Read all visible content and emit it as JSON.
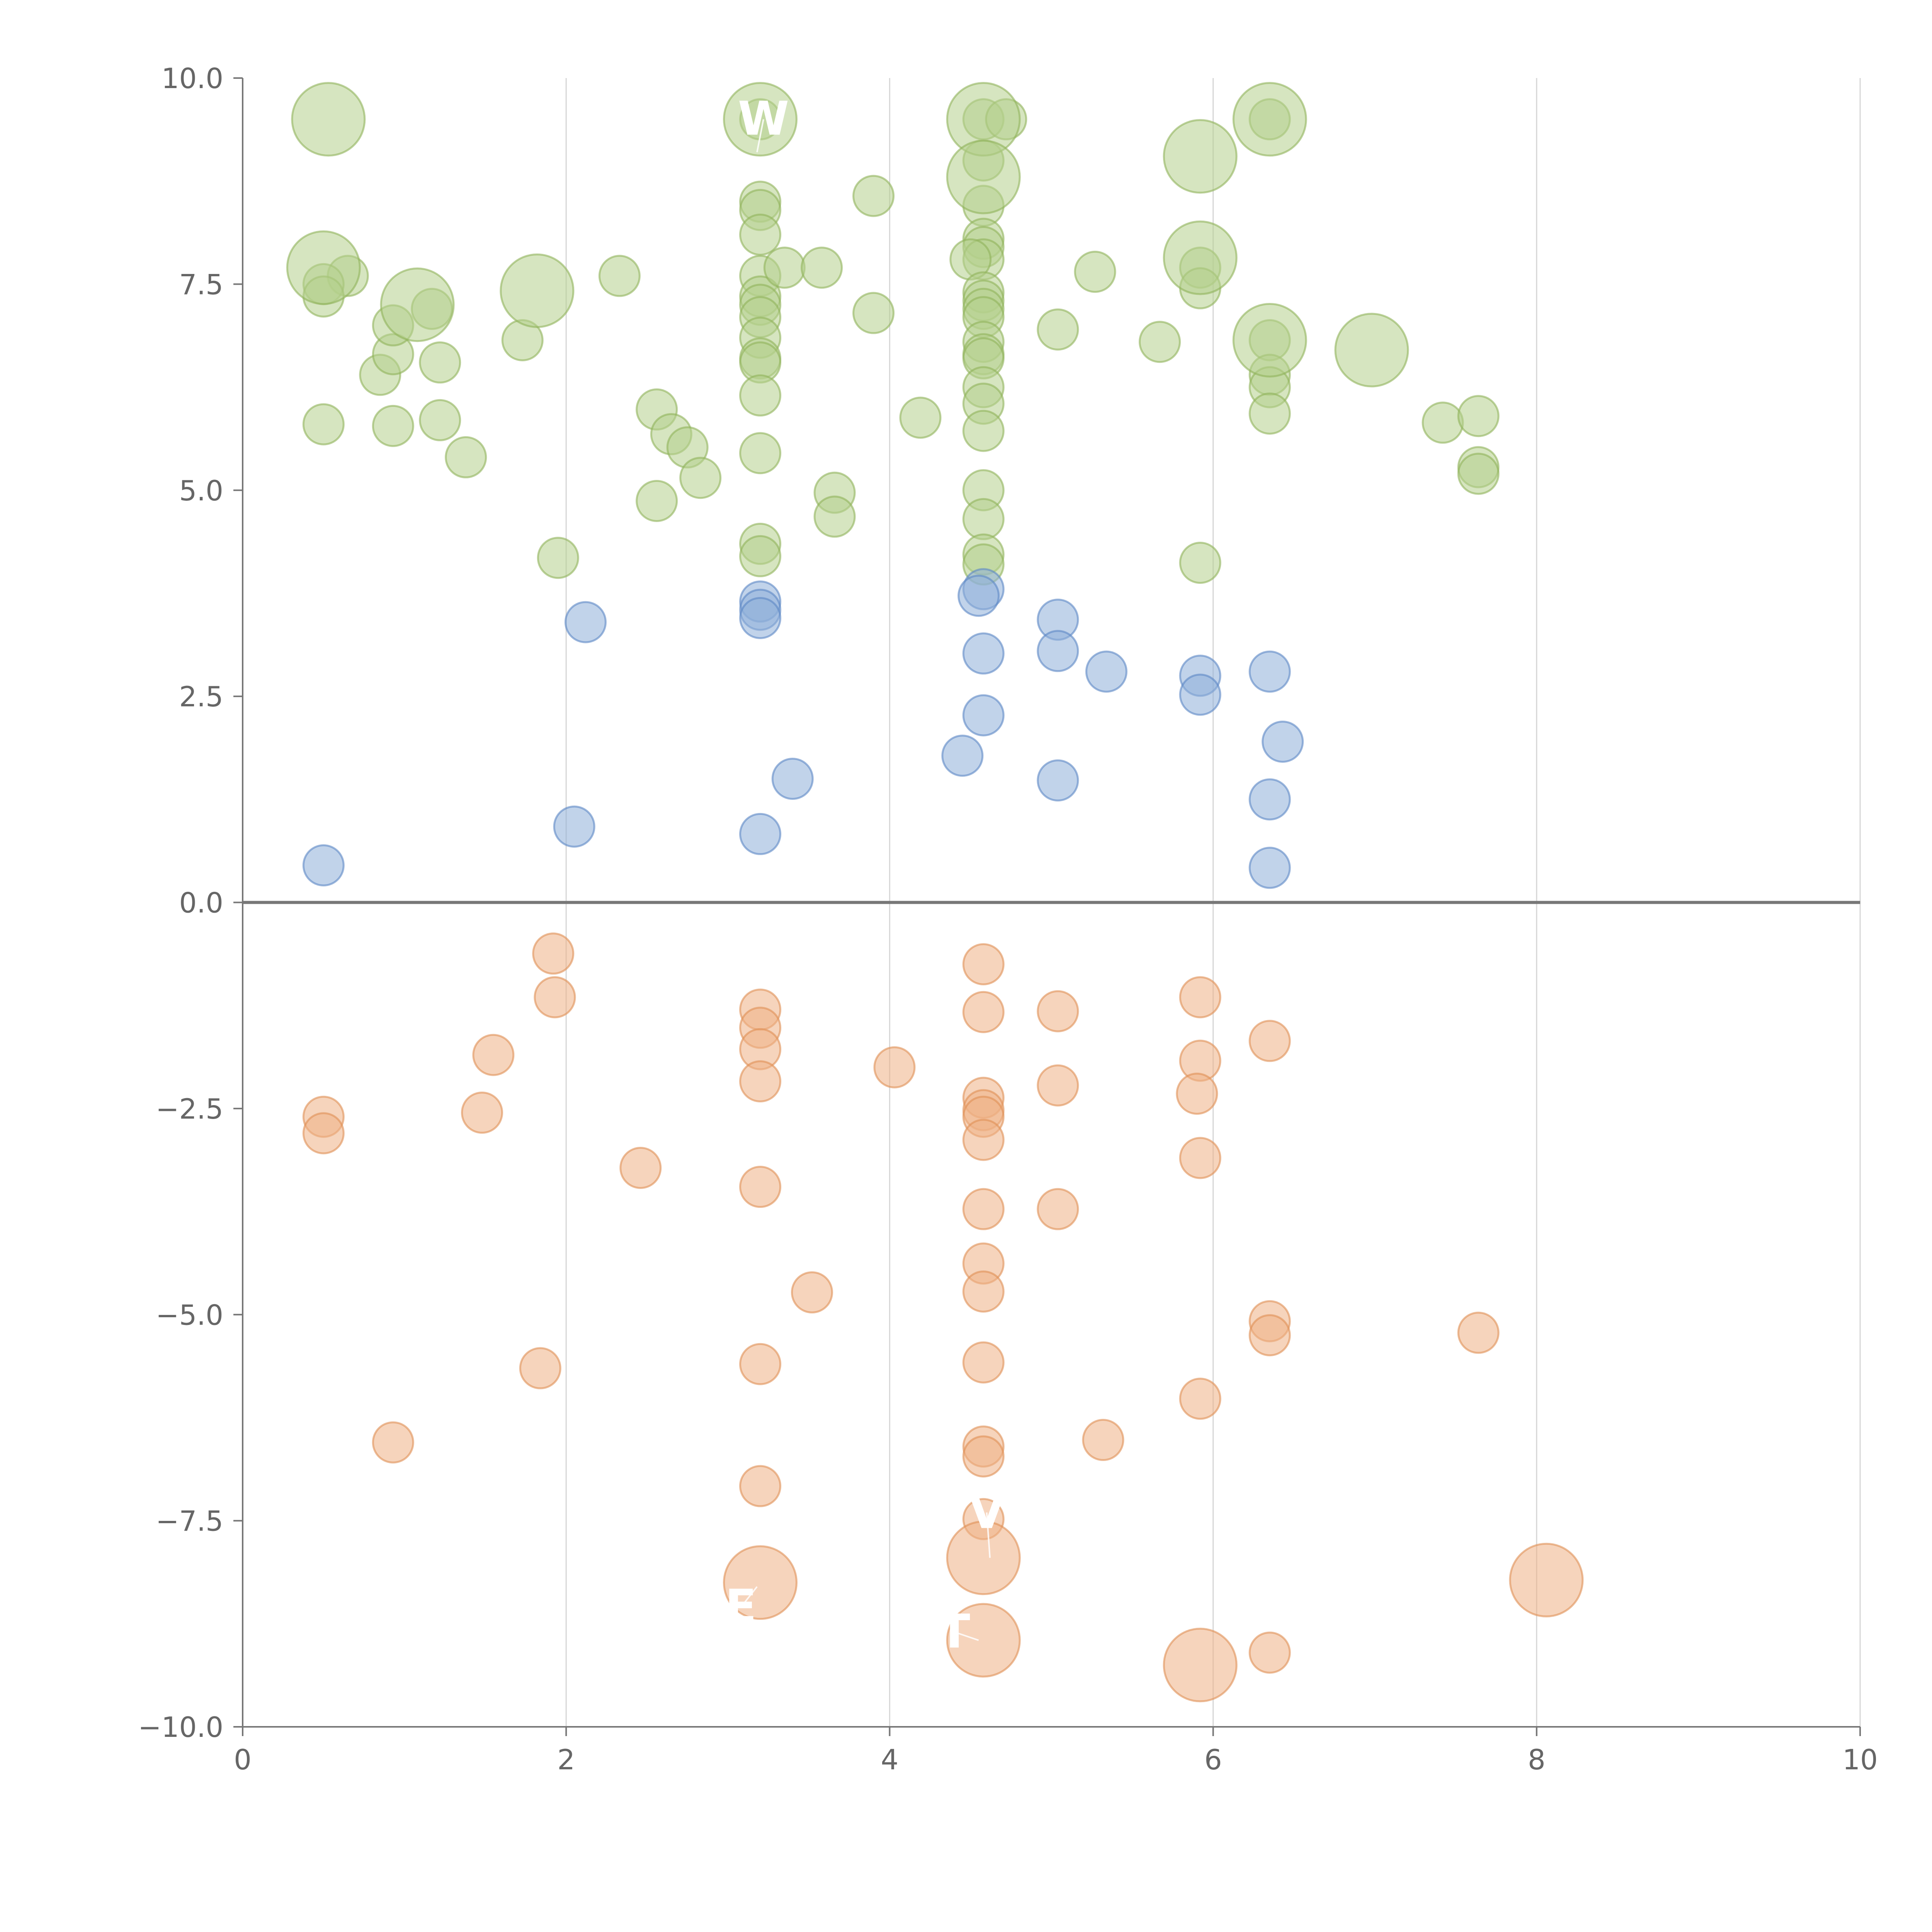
{
  "chart_data": {
    "type": "scatter",
    "title": "",
    "xlabel": "",
    "ylabel": "",
    "xlim": [
      0,
      10
    ],
    "ylim": [
      -10,
      10
    ],
    "grid": "vertical",
    "legend": "none",
    "x_ticks": [
      "0",
      "2",
      "4",
      "6",
      "8",
      "10"
    ],
    "y_ticks": [
      "10.0",
      "7.5",
      "5.0",
      "2.5",
      "0.0",
      "−2.5",
      "−5.0",
      "−7.5",
      "−10.0"
    ],
    "colors": {
      "green": {
        "fill": "#b5cf8c",
        "stroke": "#8fb35a"
      },
      "blue": {
        "fill": "#8eaed8",
        "stroke": "#5b87c5"
      },
      "orange": {
        "fill": "#eeb185",
        "stroke": "#e08f55"
      }
    },
    "series": [
      {
        "name": "green",
        "color": "green",
        "points": [
          {
            "x": 0.53,
            "y": 9.5,
            "s": 3
          },
          {
            "x": 0.5,
            "y": 7.7,
            "s": 3
          },
          {
            "x": 0.65,
            "y": 7.6,
            "s": 1
          },
          {
            "x": 0.5,
            "y": 7.5,
            "s": 1
          },
          {
            "x": 0.5,
            "y": 7.35,
            "s": 1
          },
          {
            "x": 0.5,
            "y": 5.8,
            "s": 1
          },
          {
            "x": 0.85,
            "y": 6.4,
            "s": 1
          },
          {
            "x": 0.93,
            "y": 6.65,
            "s": 1
          },
          {
            "x": 0.93,
            "y": 7.0,
            "s": 1
          },
          {
            "x": 0.93,
            "y": 5.78,
            "s": 1
          },
          {
            "x": 1.08,
            "y": 7.25,
            "s": 3
          },
          {
            "x": 1.17,
            "y": 7.2,
            "s": 1
          },
          {
            "x": 1.22,
            "y": 6.55,
            "s": 1
          },
          {
            "x": 1.22,
            "y": 5.85,
            "s": 1
          },
          {
            "x": 1.38,
            "y": 5.4,
            "s": 1
          },
          {
            "x": 1.73,
            "y": 6.82,
            "s": 1
          },
          {
            "x": 1.82,
            "y": 7.42,
            "s": 3
          },
          {
            "x": 1.95,
            "y": 4.18,
            "s": 1
          },
          {
            "x": 2.33,
            "y": 7.6,
            "s": 1
          },
          {
            "x": 2.56,
            "y": 5.98,
            "s": 1
          },
          {
            "x": 2.56,
            "y": 4.87,
            "s": 1
          },
          {
            "x": 2.65,
            "y": 5.68,
            "s": 1
          },
          {
            "x": 2.75,
            "y": 5.52,
            "s": 1
          },
          {
            "x": 2.83,
            "y": 5.15,
            "s": 1
          },
          {
            "x": 3.2,
            "y": 9.5,
            "s": 3
          },
          {
            "x": 3.2,
            "y": 9.5,
            "s": 1
          },
          {
            "x": 3.2,
            "y": 8.5,
            "s": 1
          },
          {
            "x": 3.2,
            "y": 8.4,
            "s": 1
          },
          {
            "x": 3.2,
            "y": 8.1,
            "s": 1
          },
          {
            "x": 3.2,
            "y": 7.6,
            "s": 1
          },
          {
            "x": 3.2,
            "y": 7.35,
            "s": 1
          },
          {
            "x": 3.2,
            "y": 7.25,
            "s": 1
          },
          {
            "x": 3.2,
            "y": 7.1,
            "s": 1
          },
          {
            "x": 3.2,
            "y": 6.85,
            "s": 1
          },
          {
            "x": 3.2,
            "y": 6.6,
            "s": 1
          },
          {
            "x": 3.2,
            "y": 6.55,
            "s": 1
          },
          {
            "x": 3.2,
            "y": 6.15,
            "s": 1
          },
          {
            "x": 3.2,
            "y": 5.45,
            "s": 1
          },
          {
            "x": 3.2,
            "y": 4.35,
            "s": 1
          },
          {
            "x": 3.2,
            "y": 4.2,
            "s": 1
          },
          {
            "x": 3.35,
            "y": 7.7,
            "s": 1
          },
          {
            "x": 3.58,
            "y": 7.7,
            "s": 1
          },
          {
            "x": 3.66,
            "y": 4.97,
            "s": 1
          },
          {
            "x": 3.66,
            "y": 4.68,
            "s": 1
          },
          {
            "x": 3.9,
            "y": 8.57,
            "s": 1
          },
          {
            "x": 3.9,
            "y": 7.15,
            "s": 1
          },
          {
            "x": 4.19,
            "y": 5.88,
            "s": 1
          },
          {
            "x": 4.58,
            "y": 9.5,
            "s": 3
          },
          {
            "x": 4.58,
            "y": 9.5,
            "s": 1
          },
          {
            "x": 4.72,
            "y": 9.5,
            "s": 1
          },
          {
            "x": 4.58,
            "y": 9.0,
            "s": 1
          },
          {
            "x": 4.58,
            "y": 8.8,
            "s": 3
          },
          {
            "x": 4.58,
            "y": 8.45,
            "s": 1
          },
          {
            "x": 4.58,
            "y": 8.05,
            "s": 1
          },
          {
            "x": 4.58,
            "y": 7.95,
            "s": 1
          },
          {
            "x": 4.58,
            "y": 7.8,
            "s": 1
          },
          {
            "x": 4.5,
            "y": 7.8,
            "s": 1
          },
          {
            "x": 4.58,
            "y": 7.4,
            "s": 1
          },
          {
            "x": 4.58,
            "y": 7.3,
            "s": 1
          },
          {
            "x": 4.58,
            "y": 7.2,
            "s": 1
          },
          {
            "x": 4.58,
            "y": 7.1,
            "s": 1
          },
          {
            "x": 4.58,
            "y": 6.8,
            "s": 1
          },
          {
            "x": 4.58,
            "y": 6.65,
            "s": 1
          },
          {
            "x": 4.58,
            "y": 6.6,
            "s": 1
          },
          {
            "x": 4.58,
            "y": 6.25,
            "s": 1
          },
          {
            "x": 4.58,
            "y": 6.05,
            "s": 1
          },
          {
            "x": 4.58,
            "y": 5.72,
            "s": 1
          },
          {
            "x": 4.58,
            "y": 5.0,
            "s": 1
          },
          {
            "x": 4.58,
            "y": 4.65,
            "s": 1
          },
          {
            "x": 4.58,
            "y": 4.22,
            "s": 1
          },
          {
            "x": 4.58,
            "y": 4.1,
            "s": 1
          },
          {
            "x": 5.04,
            "y": 6.95,
            "s": 1
          },
          {
            "x": 5.27,
            "y": 7.65,
            "s": 1
          },
          {
            "x": 5.67,
            "y": 6.8,
            "s": 1
          },
          {
            "x": 5.92,
            "y": 9.05,
            "s": 3
          },
          {
            "x": 5.92,
            "y": 7.82,
            "s": 3
          },
          {
            "x": 5.92,
            "y": 7.7,
            "s": 1
          },
          {
            "x": 5.92,
            "y": 7.45,
            "s": 1
          },
          {
            "x": 5.92,
            "y": 4.12,
            "s": 1
          },
          {
            "x": 6.35,
            "y": 9.5,
            "s": 3
          },
          {
            "x": 6.35,
            "y": 9.5,
            "s": 1
          },
          {
            "x": 6.35,
            "y": 6.82,
            "s": 3
          },
          {
            "x": 6.35,
            "y": 6.82,
            "s": 1
          },
          {
            "x": 6.35,
            "y": 6.4,
            "s": 1
          },
          {
            "x": 6.35,
            "y": 6.25,
            "s": 1
          },
          {
            "x": 6.35,
            "y": 5.93,
            "s": 1
          },
          {
            "x": 6.98,
            "y": 6.7,
            "s": 3
          },
          {
            "x": 7.42,
            "y": 5.82,
            "s": 1
          },
          {
            "x": 7.64,
            "y": 5.9,
            "s": 1
          },
          {
            "x": 7.64,
            "y": 5.28,
            "s": 1
          },
          {
            "x": 7.64,
            "y": 5.2,
            "s": 1
          }
        ]
      },
      {
        "name": "blue",
        "color": "blue",
        "points": [
          {
            "x": 0.5,
            "y": 0.45,
            "s": 1
          },
          {
            "x": 2.05,
            "y": 0.92,
            "s": 1
          },
          {
            "x": 2.12,
            "y": 3.4,
            "s": 1
          },
          {
            "x": 3.2,
            "y": 3.65,
            "s": 1
          },
          {
            "x": 3.2,
            "y": 3.55,
            "s": 1
          },
          {
            "x": 3.2,
            "y": 3.45,
            "s": 1
          },
          {
            "x": 3.2,
            "y": 0.83,
            "s": 1
          },
          {
            "x": 3.4,
            "y": 1.5,
            "s": 1
          },
          {
            "x": 4.45,
            "y": 1.78,
            "s": 1
          },
          {
            "x": 4.58,
            "y": 3.8,
            "s": 1
          },
          {
            "x": 4.55,
            "y": 3.72,
            "s": 1
          },
          {
            "x": 4.58,
            "y": 3.02,
            "s": 1
          },
          {
            "x": 4.58,
            "y": 2.27,
            "s": 1
          },
          {
            "x": 5.04,
            "y": 3.43,
            "s": 1
          },
          {
            "x": 5.04,
            "y": 3.05,
            "s": 1
          },
          {
            "x": 5.04,
            "y": 1.48,
            "s": 1
          },
          {
            "x": 5.34,
            "y": 2.8,
            "s": 1
          },
          {
            "x": 5.92,
            "y": 2.75,
            "s": 1
          },
          {
            "x": 5.92,
            "y": 2.52,
            "s": 1
          },
          {
            "x": 6.35,
            "y": 2.8,
            "s": 1
          },
          {
            "x": 6.43,
            "y": 1.95,
            "s": 1
          },
          {
            "x": 6.35,
            "y": 1.25,
            "s": 1
          },
          {
            "x": 6.35,
            "y": 0.42,
            "s": 1
          }
        ]
      },
      {
        "name": "orange",
        "color": "orange",
        "points": [
          {
            "x": 0.5,
            "y": -2.6,
            "s": 1
          },
          {
            "x": 0.5,
            "y": -2.8,
            "s": 1
          },
          {
            "x": 0.93,
            "y": -6.55,
            "s": 1
          },
          {
            "x": 1.48,
            "y": -2.55,
            "s": 1
          },
          {
            "x": 1.55,
            "y": -1.85,
            "s": 1
          },
          {
            "x": 1.84,
            "y": -5.65,
            "s": 1
          },
          {
            "x": 1.92,
            "y": -0.62,
            "s": 1
          },
          {
            "x": 1.93,
            "y": -1.15,
            "s": 1
          },
          {
            "x": 2.46,
            "y": -3.22,
            "s": 1
          },
          {
            "x": 3.2,
            "y": -1.3,
            "s": 1
          },
          {
            "x": 3.2,
            "y": -1.52,
            "s": 1
          },
          {
            "x": 3.2,
            "y": -1.78,
            "s": 1
          },
          {
            "x": 3.2,
            "y": -2.17,
            "s": 1
          },
          {
            "x": 3.2,
            "y": -3.45,
            "s": 1
          },
          {
            "x": 3.2,
            "y": -5.6,
            "s": 1
          },
          {
            "x": 3.2,
            "y": -7.08,
            "s": 1
          },
          {
            "x": 3.2,
            "y": -8.25,
            "s": 3
          },
          {
            "x": 3.52,
            "y": -4.73,
            "s": 1
          },
          {
            "x": 4.03,
            "y": -2.0,
            "s": 1
          },
          {
            "x": 4.58,
            "y": -0.75,
            "s": 1
          },
          {
            "x": 4.58,
            "y": -1.33,
            "s": 1
          },
          {
            "x": 4.58,
            "y": -2.37,
            "s": 1
          },
          {
            "x": 4.58,
            "y": -2.52,
            "s": 1
          },
          {
            "x": 4.58,
            "y": -2.6,
            "s": 1
          },
          {
            "x": 4.58,
            "y": -2.88,
            "s": 1
          },
          {
            "x": 4.58,
            "y": -3.72,
            "s": 1
          },
          {
            "x": 4.58,
            "y": -4.38,
            "s": 1
          },
          {
            "x": 4.58,
            "y": -4.72,
            "s": 1
          },
          {
            "x": 4.58,
            "y": -5.58,
            "s": 1
          },
          {
            "x": 4.58,
            "y": -6.6,
            "s": 1
          },
          {
            "x": 4.58,
            "y": -6.72,
            "s": 1
          },
          {
            "x": 4.58,
            "y": -7.48,
            "s": 1
          },
          {
            "x": 4.58,
            "y": -7.95,
            "s": 3
          },
          {
            "x": 4.58,
            "y": -8.95,
            "s": 3
          },
          {
            "x": 5.04,
            "y": -1.32,
            "s": 1
          },
          {
            "x": 5.04,
            "y": -2.22,
            "s": 1
          },
          {
            "x": 5.04,
            "y": -3.72,
            "s": 1
          },
          {
            "x": 5.32,
            "y": -6.52,
            "s": 1
          },
          {
            "x": 5.92,
            "y": -1.15,
            "s": 1
          },
          {
            "x": 5.92,
            "y": -1.92,
            "s": 1
          },
          {
            "x": 5.9,
            "y": -2.32,
            "s": 1
          },
          {
            "x": 5.92,
            "y": -3.1,
            "s": 1
          },
          {
            "x": 5.92,
            "y": -6.02,
            "s": 1
          },
          {
            "x": 5.92,
            "y": -9.25,
            "s": 3
          },
          {
            "x": 6.35,
            "y": -1.68,
            "s": 1
          },
          {
            "x": 6.35,
            "y": -5.08,
            "s": 1
          },
          {
            "x": 6.35,
            "y": -5.25,
            "s": 1
          },
          {
            "x": 6.35,
            "y": -9.1,
            "s": 1
          },
          {
            "x": 7.64,
            "y": -5.22,
            "s": 1
          },
          {
            "x": 8.06,
            "y": -8.22,
            "s": 3
          }
        ]
      }
    ],
    "annotations": [
      {
        "text": "W",
        "x": 3.22,
        "y": 9.5,
        "lx": 3.18,
        "ly": 9.1
      },
      {
        "text": "E",
        "x": 3.08,
        "y": -8.55,
        "lx": 3.18,
        "ly": -8.3
      },
      {
        "text": "T",
        "x": 4.4,
        "y": -8.85,
        "lx": 4.55,
        "ly": -8.95
      },
      {
        "text": "V",
        "x": 4.6,
        "y": -7.4,
        "lx": 4.62,
        "ly": -7.95
      }
    ]
  }
}
